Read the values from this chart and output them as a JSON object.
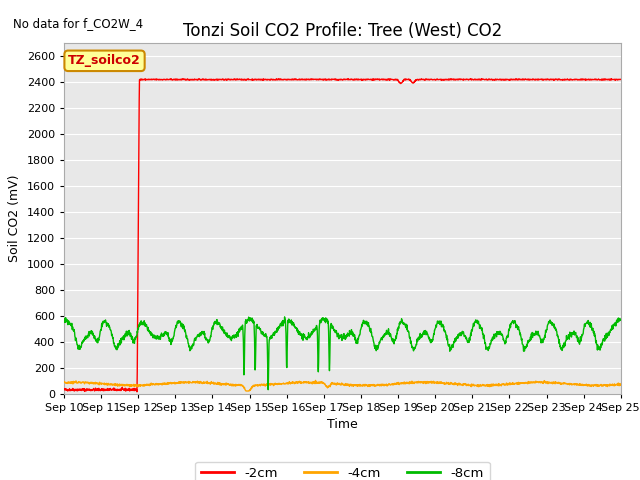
{
  "title": "Tonzi Soil CO2 Profile: Tree (West) CO2",
  "no_data_text": "No data for f_CO2W_4",
  "ylabel": "Soil CO2 (mV)",
  "xlabel": "Time",
  "ylim": [
    0,
    2700
  ],
  "yticks": [
    0,
    200,
    400,
    600,
    800,
    1000,
    1200,
    1400,
    1600,
    1800,
    2000,
    2200,
    2400,
    2600
  ],
  "xlim": [
    0,
    15
  ],
  "xtick_labels": [
    "Sep 10",
    "Sep 11",
    "Sep 12",
    "Sep 13",
    "Sep 14",
    "Sep 15",
    "Sep 16",
    "Sep 17",
    "Sep 18",
    "Sep 19",
    "Sep 20",
    "Sep 21",
    "Sep 22",
    "Sep 23",
    "Sep 24",
    "Sep 25"
  ],
  "legend_labels": [
    "-2cm",
    "-4cm",
    "-8cm"
  ],
  "legend_colors": [
    "#ff0000",
    "#ffa500",
    "#00bb00"
  ],
  "annotation_text": "TZ_soilco2",
  "annotation_bg": "#ffff99",
  "annotation_border": "#cc8800",
  "fig_bg_color": "#ffffff",
  "plot_bg_color": "#e8e8e8",
  "grid_color": "#ffffff",
  "title_fontsize": 12,
  "axis_fontsize": 9,
  "tick_fontsize": 8
}
